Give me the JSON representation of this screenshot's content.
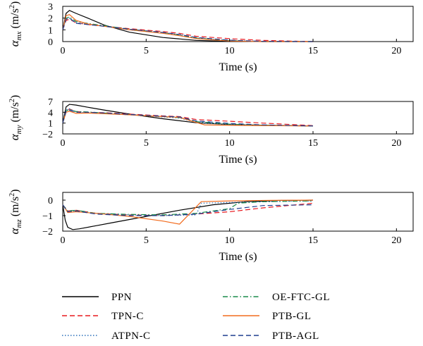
{
  "legend": {
    "items": [
      {
        "label": "PPN",
        "color": "#000000",
        "dash": "solid",
        "col": 0,
        "row": 0
      },
      {
        "label": "TPN-C",
        "color": "#e8191f",
        "dash": "dashed",
        "col": 0,
        "row": 1
      },
      {
        "label": "ATPN-C",
        "color": "#2a6fba",
        "dash": "dotted",
        "col": 0,
        "row": 2
      },
      {
        "label": "OE-FTC-GL",
        "color": "#1a8a4a",
        "dash": "dashdot",
        "col": 1,
        "row": 0
      },
      {
        "label": "PTB-GL",
        "color": "#f26b1d",
        "dash": "solid",
        "col": 1,
        "row": 1
      },
      {
        "label": "PTB-AGL",
        "color": "#1f3f8f",
        "dash": "dashed",
        "col": 1,
        "row": 2
      }
    ]
  },
  "chart_data": [
    {
      "type": "line",
      "xlabel": "Time (s)",
      "ylabel_main": "α",
      "ylabel_sub": "mx",
      "ylabel_unit": " (m/s",
      "ylabel_sup": "2",
      "ylabel_close": ")",
      "xlim": [
        0,
        21
      ],
      "ylim": [
        0,
        3
      ],
      "xticks": [
        0,
        5,
        10,
        15,
        20
      ],
      "yticks": [
        0,
        1,
        2,
        3
      ],
      "series": [
        {
          "name": "PPN",
          "x": [
            0,
            0.2,
            0.4,
            0.8,
            1.5,
            2.5,
            4,
            6,
            8,
            10,
            12,
            15
          ],
          "y": [
            1.0,
            2.4,
            2.65,
            2.4,
            2.0,
            1.4,
            0.8,
            0.35,
            0.1,
            0.02,
            0.0,
            0.0
          ]
        },
        {
          "name": "TPN-C",
          "x": [
            0,
            0.2,
            0.4,
            0.8,
            1.5,
            2.5,
            4,
            6,
            7,
            8,
            10,
            12,
            15
          ],
          "y": [
            1.0,
            1.8,
            1.9,
            1.6,
            1.45,
            1.3,
            1.1,
            0.85,
            0.7,
            0.45,
            0.25,
            0.1,
            0.0
          ]
        },
        {
          "name": "ATPN-C",
          "x": [
            0,
            0.2,
            0.4,
            0.8,
            1.5,
            2.5,
            4,
            6,
            7,
            8,
            10,
            12,
            15
          ],
          "y": [
            1.0,
            1.9,
            2.0,
            1.6,
            1.5,
            1.3,
            1.0,
            0.75,
            0.6,
            0.3,
            0.1,
            0.02,
            0.0
          ]
        },
        {
          "name": "OE-FTC-GL",
          "x": [
            0,
            0.2,
            0.4,
            0.8,
            1.5,
            2.5,
            4,
            6,
            7,
            8,
            10,
            12,
            15
          ],
          "y": [
            1.0,
            2.0,
            2.1,
            1.7,
            1.55,
            1.35,
            1.05,
            0.75,
            0.55,
            0.3,
            0.08,
            0.0,
            0.0
          ]
        },
        {
          "name": "PTB-GL",
          "x": [
            0,
            0.2,
            0.4,
            0.8,
            1.5,
            2.5,
            4,
            6,
            7,
            8,
            10,
            12,
            15
          ],
          "y": [
            1.0,
            2.2,
            2.3,
            1.8,
            1.5,
            1.3,
            1.0,
            0.7,
            0.5,
            0.25,
            0.05,
            0.0,
            0.0
          ]
        },
        {
          "name": "PTB-AGL",
          "x": [
            0,
            0.2,
            0.4,
            0.8,
            1.5,
            2.5,
            4,
            6,
            7,
            8,
            10,
            12,
            15
          ],
          "y": [
            1.0,
            1.9,
            2.0,
            1.55,
            1.45,
            1.3,
            1.05,
            0.78,
            0.6,
            0.35,
            0.12,
            0.02,
            0.0
          ]
        }
      ]
    },
    {
      "type": "line",
      "xlabel": "Time (s)",
      "ylabel_main": "α",
      "ylabel_sub": "my",
      "ylabel_unit": " (m/s",
      "ylabel_sup": "2",
      "ylabel_close": ")",
      "xlim": [
        0,
        21
      ],
      "ylim": [
        -2,
        7
      ],
      "xticks": [
        0,
        5,
        10,
        15,
        20
      ],
      "yticks": [
        -2,
        1,
        4,
        7
      ],
      "series": [
        {
          "name": "PPN",
          "x": [
            0,
            0.2,
            0.4,
            0.8,
            1.5,
            2.5,
            4,
            6,
            8,
            10,
            12,
            15
          ],
          "y": [
            1.0,
            5.5,
            6.2,
            6.0,
            5.4,
            4.6,
            3.5,
            2.2,
            1.1,
            0.6,
            0.4,
            0.2
          ]
        },
        {
          "name": "TPN-C",
          "x": [
            0,
            0.2,
            0.4,
            0.8,
            1.5,
            2.5,
            4,
            6,
            7,
            8,
            10,
            12,
            15
          ],
          "y": [
            1.0,
            4.5,
            4.9,
            4.2,
            4.0,
            3.9,
            3.5,
            3.0,
            2.8,
            2.0,
            1.5,
            1.0,
            0.3
          ]
        },
        {
          "name": "ATPN-C",
          "x": [
            0,
            0.2,
            0.4,
            0.8,
            1.5,
            2.5,
            4,
            6,
            7,
            8,
            10,
            12,
            15
          ],
          "y": [
            1.0,
            4.7,
            5.0,
            4.0,
            3.9,
            3.7,
            3.3,
            2.7,
            2.4,
            1.2,
            0.6,
            0.4,
            0.2
          ]
        },
        {
          "name": "OE-FTC-GL",
          "x": [
            0,
            0.2,
            0.4,
            0.8,
            1.5,
            2.5,
            4,
            6,
            7,
            8,
            10,
            12,
            15
          ],
          "y": [
            1.0,
            4.4,
            4.8,
            4.2,
            4.1,
            3.8,
            3.3,
            2.8,
            2.5,
            1.4,
            0.7,
            0.4,
            0.2
          ]
        },
        {
          "name": "PTB-GL",
          "x": [
            0,
            0.2,
            0.4,
            0.8,
            1.5,
            2.5,
            4,
            6,
            7,
            8,
            8.5,
            10,
            12,
            15
          ],
          "y": [
            1.0,
            4.0,
            4.3,
            3.7,
            3.8,
            3.6,
            3.3,
            2.8,
            2.6,
            1.2,
            0.5,
            0.4,
            0.3,
            0.2
          ]
        },
        {
          "name": "PTB-AGL",
          "x": [
            0,
            0.2,
            0.4,
            0.8,
            1.5,
            2.5,
            4,
            6,
            7,
            8,
            10,
            12,
            15
          ],
          "y": [
            1.0,
            4.3,
            4.6,
            4.0,
            4.0,
            3.8,
            3.4,
            2.9,
            2.7,
            1.6,
            0.9,
            0.5,
            0.2
          ]
        }
      ]
    },
    {
      "type": "line",
      "xlabel": "Time (s)",
      "ylabel_main": "α",
      "ylabel_sub": "mz",
      "ylabel_unit": " (m/s",
      "ylabel_sup": "2",
      "ylabel_close": ")",
      "xlim": [
        0,
        21
      ],
      "ylim": [
        -2,
        0.5
      ],
      "xticks": [
        0,
        5,
        10,
        15,
        20
      ],
      "yticks": [
        -2,
        -1,
        0
      ],
      "series": [
        {
          "name": "PPN",
          "x": [
            0,
            0.15,
            0.3,
            0.6,
            1,
            2,
            3,
            5,
            7,
            9,
            11,
            13,
            15
          ],
          "y": [
            -0.3,
            -1.3,
            -1.75,
            -1.9,
            -1.85,
            -1.65,
            -1.45,
            -1.05,
            -0.65,
            -0.3,
            -0.1,
            -0.02,
            0.0
          ]
        },
        {
          "name": "TPN-C",
          "x": [
            0,
            0.3,
            0.8,
            2,
            4,
            6,
            8,
            10,
            12,
            14,
            15
          ],
          "y": [
            -0.3,
            -0.7,
            -0.65,
            -0.85,
            -0.95,
            -1.0,
            -0.9,
            -0.75,
            -0.5,
            -0.3,
            -0.2
          ]
        },
        {
          "name": "ATPN-C",
          "x": [
            0,
            0.3,
            0.8,
            2,
            4,
            6,
            8,
            8.3,
            10,
            12,
            15
          ],
          "y": [
            -0.3,
            -0.75,
            -0.7,
            -0.85,
            -0.95,
            -1.0,
            -0.95,
            -0.2,
            -0.15,
            -0.1,
            -0.05
          ]
        },
        {
          "name": "OE-FTC-GL",
          "x": [
            0,
            0.3,
            0.8,
            2,
            4,
            6,
            8,
            10,
            10.5,
            12,
            15
          ],
          "y": [
            -0.3,
            -0.7,
            -0.65,
            -0.85,
            -0.92,
            -0.95,
            -0.85,
            -0.55,
            -0.2,
            -0.1,
            -0.05
          ]
        },
        {
          "name": "PTB-GL",
          "x": [
            0,
            0.3,
            0.8,
            2,
            4,
            6,
            7,
            8.3,
            10,
            12,
            15
          ],
          "y": [
            -0.3,
            -0.8,
            -0.75,
            -0.85,
            -1.05,
            -1.35,
            -1.55,
            -0.1,
            -0.05,
            -0.02,
            0.0
          ]
        },
        {
          "name": "PTB-AGL",
          "x": [
            0,
            0.3,
            0.8,
            2,
            4,
            6,
            8,
            10,
            12,
            15
          ],
          "y": [
            -0.3,
            -0.75,
            -0.7,
            -0.9,
            -1.0,
            -1.0,
            -0.9,
            -0.6,
            -0.35,
            -0.3
          ]
        }
      ]
    }
  ]
}
